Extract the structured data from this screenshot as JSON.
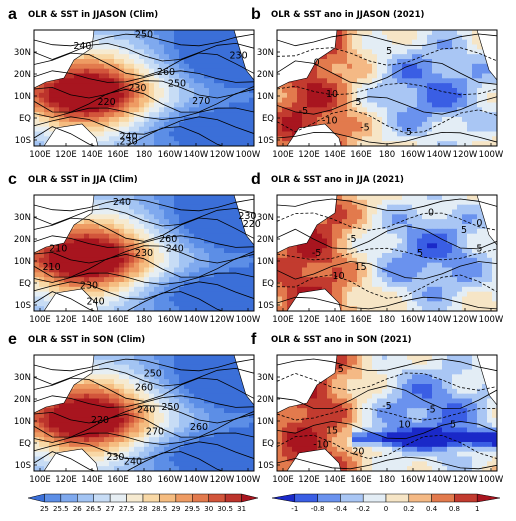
{
  "chart_data": [
    {
      "id": "a",
      "type": "heatmap",
      "letter": "a",
      "title": "OLR & SST in JJASON (Clim)",
      "xlabels": [
        "100E",
        "120E",
        "140E",
        "160E",
        "180",
        "160W",
        "140W",
        "120W",
        "100W"
      ],
      "ylabels": [
        "30N",
        "20N",
        "10N",
        "EQ",
        "10S"
      ],
      "fill": "sst_clim",
      "contour_labels": [
        "250",
        "240",
        "230",
        "260",
        "250",
        "230",
        "220",
        "270",
        "240",
        "230"
      ]
    },
    {
      "id": "b",
      "type": "heatmap",
      "letter": "b",
      "title": "OLR & SST ano in JJASON (2021)",
      "xlabels": [
        "100E",
        "120E",
        "140E",
        "160E",
        "180",
        "160W",
        "140W",
        "120W",
        "100W"
      ],
      "ylabels": [
        "30N",
        "20N",
        "10N",
        "EQ",
        "10S"
      ],
      "fill": "sst_anom",
      "contour_labels": [
        "5",
        "0",
        "10",
        "5",
        "-10",
        "-5",
        "5",
        "-5"
      ]
    },
    {
      "id": "c",
      "type": "heatmap",
      "letter": "c",
      "title": "OLR & SST in JJA (Clim)",
      "xlabels": [
        "100E",
        "120E",
        "140E",
        "160E",
        "180",
        "160W",
        "140W",
        "120W",
        "100W"
      ],
      "ylabels": [
        "30N",
        "20N",
        "10N",
        "EQ",
        "10S"
      ],
      "fill": "sst_clim",
      "contour_labels": [
        "240",
        "230",
        "260",
        "240",
        "230",
        "210",
        "210",
        "230",
        "240",
        "220"
      ]
    },
    {
      "id": "d",
      "type": "heatmap",
      "letter": "d",
      "title": "OLR & SST ano in JJA (2021)",
      "xlabels": [
        "100E",
        "120E",
        "140E",
        "160E",
        "180",
        "160W",
        "140W",
        "120W",
        "100W"
      ],
      "ylabels": [
        "30N",
        "20N",
        "10N",
        "EQ",
        "10S"
      ],
      "fill": "sst_anom",
      "contour_labels": [
        "0",
        "5",
        "-5",
        "5",
        "15",
        "10",
        "-5",
        "5",
        "0"
      ]
    },
    {
      "id": "e",
      "type": "heatmap",
      "letter": "e",
      "title": "OLR & SST in SON (Clim)",
      "xlabels": [
        "100E",
        "120E",
        "140E",
        "160E",
        "180",
        "160W",
        "140W",
        "120W",
        "100W"
      ],
      "ylabels": [
        "30N",
        "20N",
        "10N",
        "EQ",
        "10S"
      ],
      "fill": "sst_clim",
      "contour_labels": [
        "250",
        "260",
        "240",
        "250",
        "220",
        "270",
        "260",
        "230",
        "240"
      ]
    },
    {
      "id": "f",
      "type": "heatmap",
      "letter": "f",
      "title": "OLR & SST ano in SON (2021)",
      "xlabels": [
        "100E",
        "120E",
        "140E",
        "160E",
        "180",
        "160W",
        "140W",
        "120W",
        "100W"
      ],
      "ylabels": [
        "30N",
        "20N",
        "10N",
        "EQ",
        "10S"
      ],
      "fill": "sst_anom",
      "contour_labels": [
        "5",
        "-5",
        "10",
        "-5",
        "15",
        "-10",
        "20",
        "5"
      ]
    }
  ],
  "colorbars": [
    {
      "id": "clim",
      "labels": [
        "25",
        "25.5",
        "26",
        "26.5",
        "27",
        "27.5",
        "28",
        "28.5",
        "29",
        "29.5",
        "30",
        "30.5",
        "31"
      ],
      "colors": [
        "#3b6fd8",
        "#5c8ee6",
        "#7fa9ee",
        "#a3c4f3",
        "#c7dcf5",
        "#e6eef3",
        "#f6ead0",
        "#f8d8a6",
        "#f5bc80",
        "#ee9b63",
        "#e27a4d",
        "#d2553b",
        "#bc342c",
        "#a8151f"
      ]
    },
    {
      "id": "anom",
      "labels": [
        "-1",
        "-0.8",
        "-0.4",
        "-0.2",
        "0",
        "0.2",
        "0.4",
        "0.8",
        "1"
      ],
      "colors": [
        "#1a29c8",
        "#3a5ee4",
        "#6a92ee",
        "#a9c6f4",
        "#e3edf5",
        "#f6e5c6",
        "#f4b985",
        "#e27a4d",
        "#c23b2f",
        "#a8151f"
      ]
    }
  ]
}
